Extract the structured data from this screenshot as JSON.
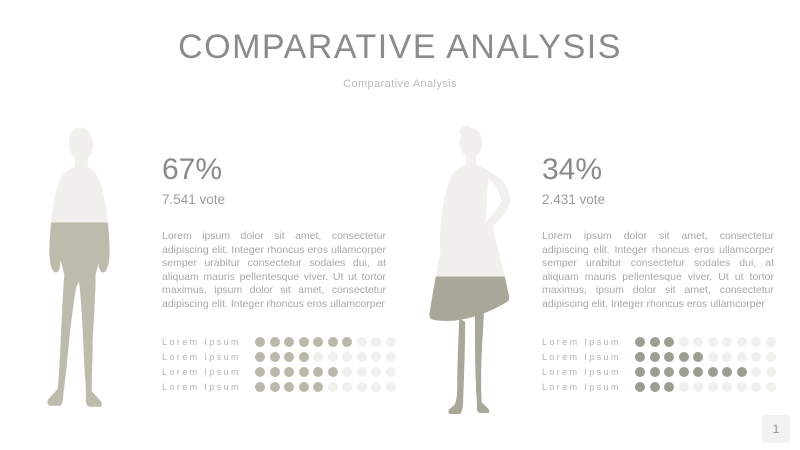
{
  "slide": {
    "title": "COMPARATIVE ANALYSIS",
    "subtitle": "Comparative Analysis",
    "page_number": "1"
  },
  "colors": {
    "title_text": "#8b8b8b",
    "subtitle_text": "#bababa",
    "percent_text": "#8a8a8a",
    "votes_text": "#9c9c9c",
    "body_text": "#a8a8a8",
    "rating_label_text": "#b3b3b3",
    "figure_light": "#f1f0ed",
    "man_fill": "#bdbcac",
    "woman_fill": "#a8a79a",
    "left_dot_filled": "#b9b8ab",
    "right_dot_filled": "#9d9d94",
    "dot_empty": "#f0f0ec",
    "page_badge_bg": "#f2f2f0",
    "page_badge_text": "#909090"
  },
  "panels": [
    {
      "figure": "man-silhouette",
      "percent": "67%",
      "votes": "7.541 vote",
      "fill_percent": 67,
      "description": "Lorem ipsum dolor sit amet, consectetur adipiscing elit. Integer rhoncus eros ullamcorper semper urabitur consectetur sodales dui, at aliquam mauris pellentesque viver. Ut ut tortor maximus, ipsum dolor sit amet, consectetur adipiscing elit. Integer rhoncus eros ullamcorper",
      "ratings": [
        {
          "label": "Lorem Ipsum",
          "value": 7,
          "max": 10
        },
        {
          "label": "Lorem Ipsum",
          "value": 4,
          "max": 10
        },
        {
          "label": "Lorem Ipsum",
          "value": 6,
          "max": 10
        },
        {
          "label": "Lorem Ipsum",
          "value": 5,
          "max": 10
        }
      ]
    },
    {
      "figure": "woman-silhouette",
      "percent": "34%",
      "votes": "2.431 vote",
      "fill_percent": 34,
      "description": "Lorem ipsum dolor sit amet, consectetur adipiscing elit. Integer rhoncus eros ullamcorper semper urabitur consectetur sodales dui, at aliquam mauris pellentesque viver. Ut ut tortor maximus, ipsum dolor sit amet, consectetur adipiscing elit. Integer rhoncus eros ullamcorper",
      "ratings": [
        {
          "label": "Lorem Ipsum",
          "value": 3,
          "max": 10
        },
        {
          "label": "Lorem Ipsum",
          "value": 5,
          "max": 10
        },
        {
          "label": "Lorem Ipsum",
          "value": 8,
          "max": 10
        },
        {
          "label": "Lorem Ipsum",
          "value": 3,
          "max": 10
        }
      ]
    }
  ],
  "chart_data": {
    "type": "pictogram",
    "title": "COMPARATIVE ANALYSIS",
    "subtitle": "Comparative Analysis",
    "categories": [
      "man",
      "woman"
    ],
    "series": [
      {
        "name": "man",
        "percent": 67,
        "votes": 7541,
        "votes_label": "7.541 vote",
        "ratings": [
          7,
          4,
          6,
          5
        ]
      },
      {
        "name": "woman",
        "percent": 34,
        "votes": 2431,
        "votes_label": "2.431 vote",
        "ratings": [
          3,
          5,
          8,
          3
        ]
      }
    ],
    "rating_max": 10,
    "rating_row_labels": [
      "Lorem Ipsum",
      "Lorem Ipsum",
      "Lorem Ipsum",
      "Lorem Ipsum"
    ]
  }
}
